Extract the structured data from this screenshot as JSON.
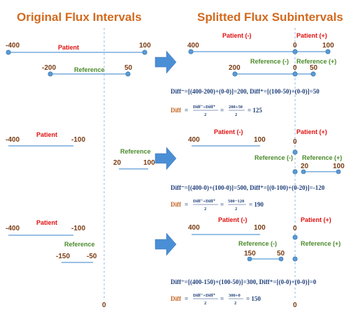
{
  "titles": {
    "left": "Original Flux Intervals",
    "right": "Splitted Flux Subintervals"
  },
  "labels": {
    "patient": "Patient",
    "reference": "Reference",
    "patient_neg": "Patient (-)",
    "patient_pos": "Patient (+)",
    "reference_neg": "Reference (-)",
    "reference_pos": "Reference (+)",
    "zero": "0"
  },
  "colors": {
    "title": "#d2691e",
    "number": "#7a3b12",
    "patient_label": "#e01010",
    "reference_label": "#4a8a2a",
    "segment": "#5b9bd5",
    "equation": "#1f3f7a"
  },
  "panels": [
    {
      "left": {
        "patient": {
          "start": "-400",
          "end": "100"
        },
        "reference": {
          "start": "-200",
          "end": "50"
        }
      },
      "right": {
        "patient_neg": {
          "start": "400",
          "end": "0"
        },
        "patient_pos": {
          "start": "0",
          "end": "100"
        },
        "reference_neg": {
          "start": "200",
          "end": "0"
        },
        "reference_pos": {
          "start": "0",
          "end": "50"
        }
      },
      "eq1": "Diff⁻=[(400-200)+(0-0)]=200, Diff⁺=[(100-50)+(0-0)]=50",
      "eq2_label": "Diff",
      "eq2_frac_num": "Diff⁻+Diff⁺",
      "eq2_frac_den": "2",
      "eq2_num": "200+50",
      "eq2_den": "2",
      "eq2_result": "= 125"
    },
    {
      "left": {
        "patient": {
          "start": "-400",
          "end": "-100"
        },
        "reference": {
          "start": "20",
          "end": "100"
        }
      },
      "right": {
        "patient_neg": {
          "start": "400",
          "end": "100"
        },
        "patient_pos": {
          "start": "0",
          "end": ""
        },
        "reference_neg": {
          "start": "",
          "end": "0"
        },
        "reference_pos": {
          "start": "20",
          "end": "100"
        }
      },
      "eq1": "Diff⁻=[(400-0)+(100-0)]=500, Diff⁺=[(0-100)+(0-20)]=-120",
      "eq2_label": "Diff",
      "eq2_frac_num": "Diff⁻+Diff⁺",
      "eq2_frac_den": "2",
      "eq2_num": "500−120",
      "eq2_den": "2",
      "eq2_result": "= 190"
    },
    {
      "left": {
        "patient": {
          "start": "-400",
          "end": "-100"
        },
        "reference": {
          "start": "-150",
          "end": "-50"
        }
      },
      "right": {
        "patient_neg": {
          "start": "400",
          "end": "100"
        },
        "patient_pos": {
          "start": "0",
          "end": ""
        },
        "reference_neg": {
          "start": "150",
          "end": "50"
        },
        "reference_pos": {
          "start": "0",
          "end": ""
        }
      },
      "eq1": "Diff⁻=[(400-150)+(100-50)]=300, Diff⁺=[(0-0)+(0-0)]=0",
      "eq2_label": "Diff",
      "eq2_frac_num": "Diff⁻+Diff⁺",
      "eq2_frac_den": "2",
      "eq2_num": "300+0",
      "eq2_den": "2",
      "eq2_result": "= 150"
    }
  ]
}
